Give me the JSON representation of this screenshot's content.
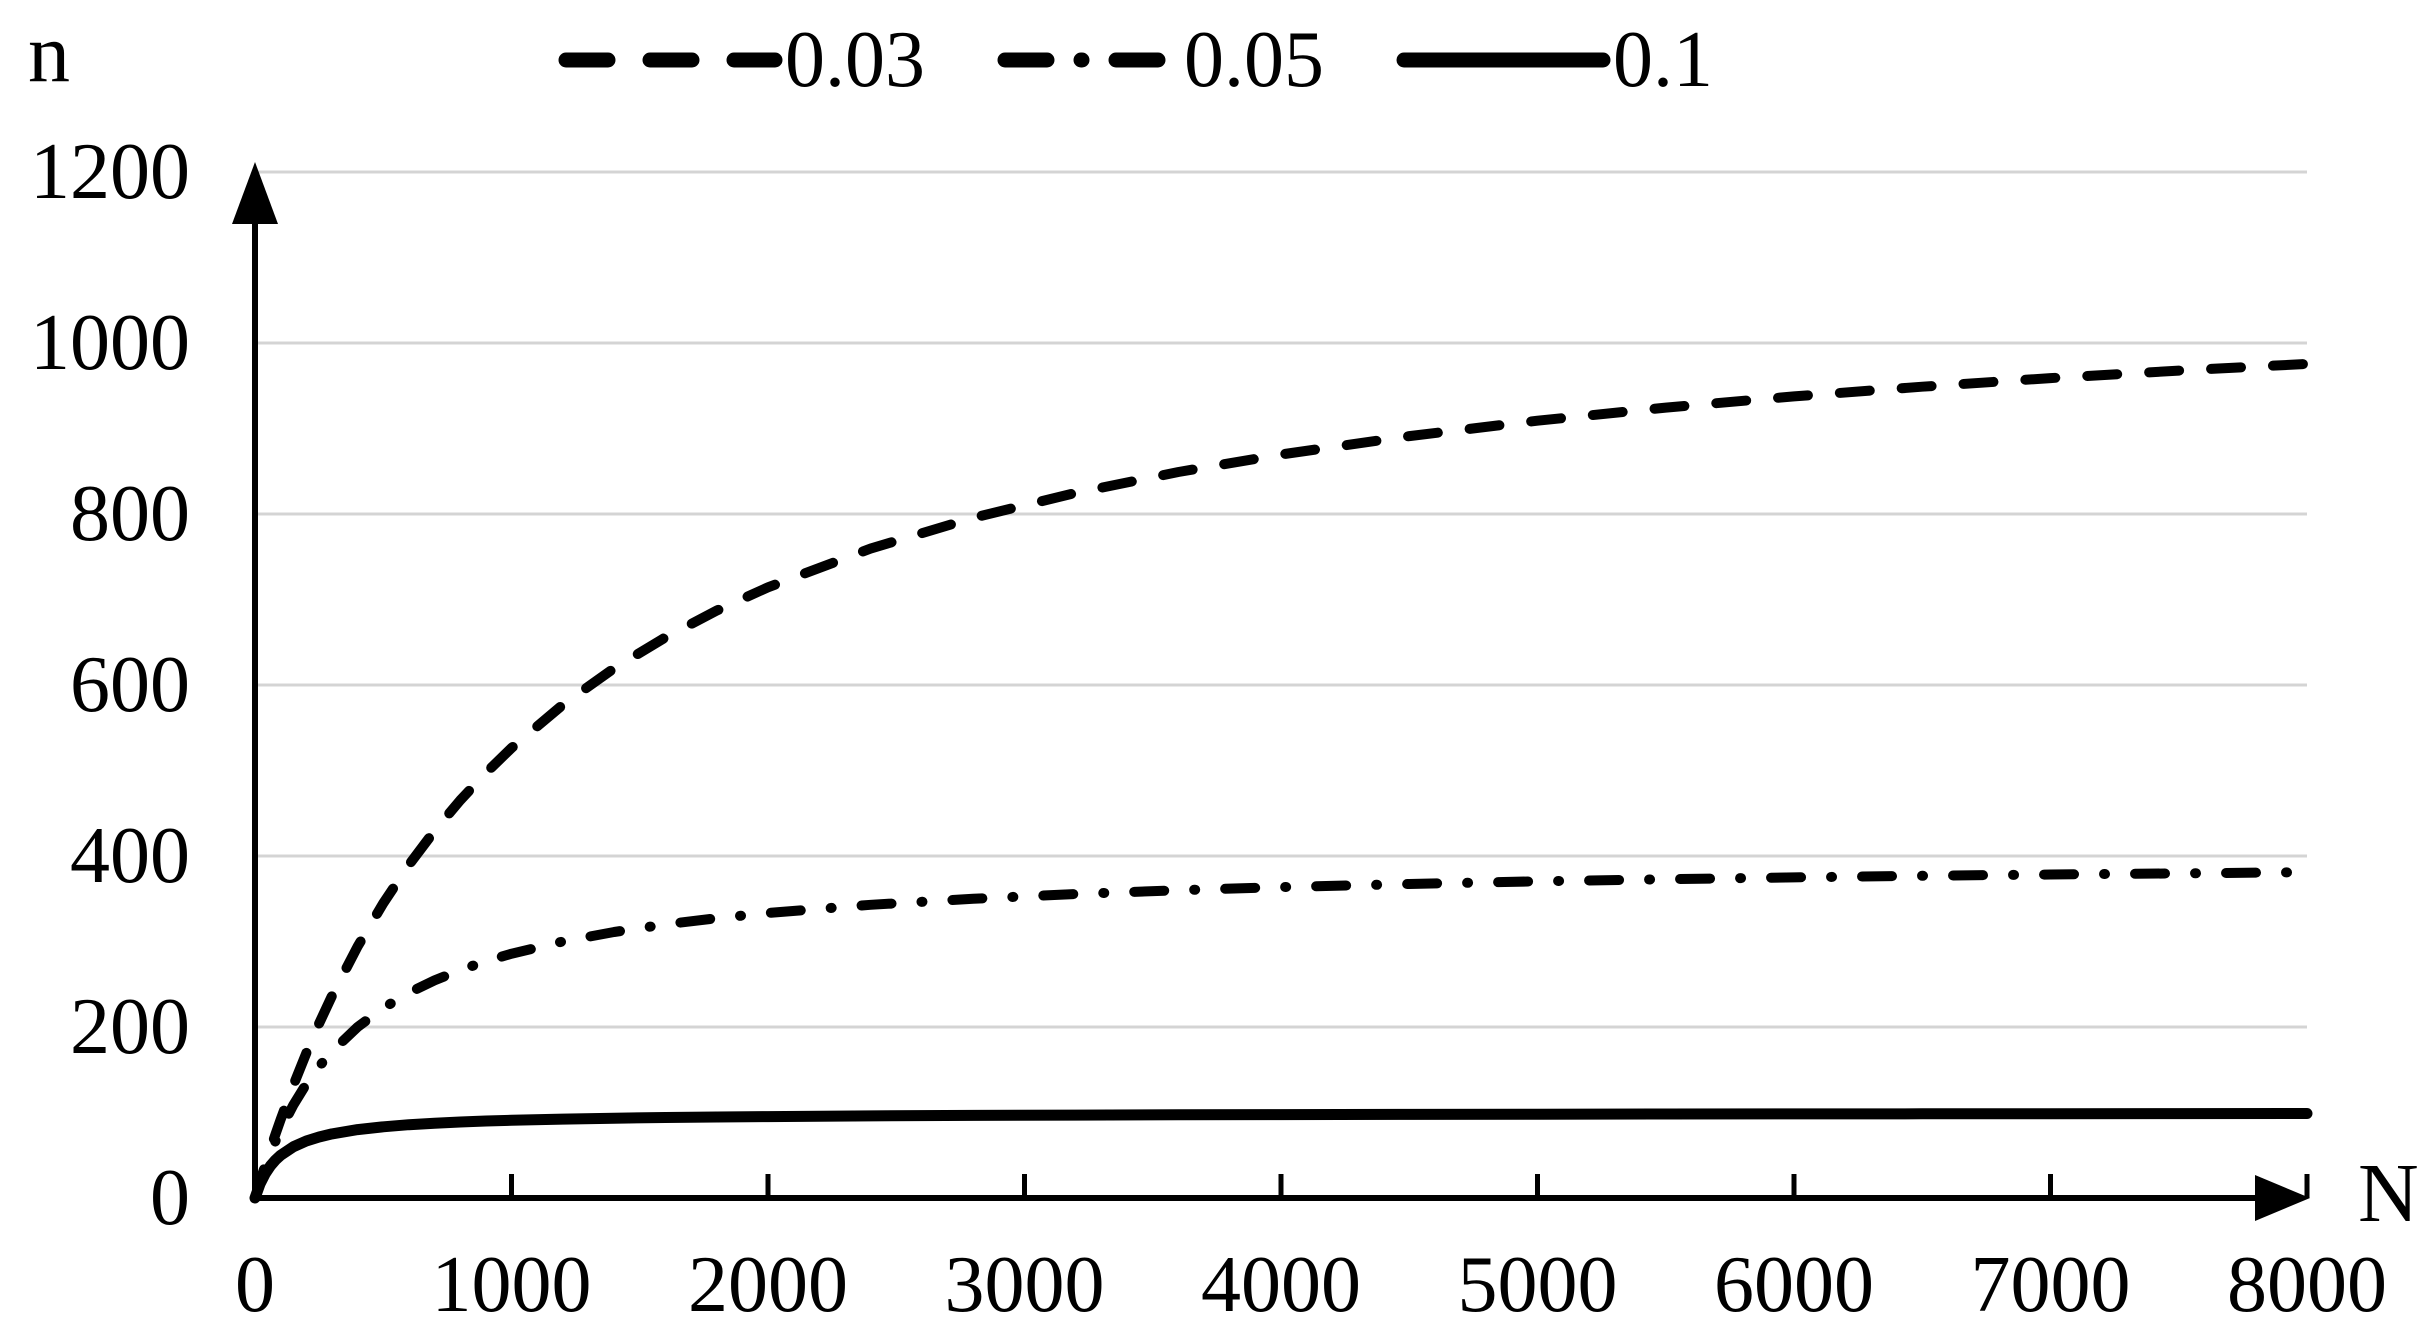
{
  "chart_data": {
    "type": "line",
    "title": "",
    "xlabel": "N",
    "ylabel": "n",
    "xlim": [
      0,
      8000
    ],
    "ylim": [
      0,
      1200
    ],
    "grid": "horizontal",
    "legend_position": "top",
    "x_tick_labels": [
      "0",
      "1000",
      "2000",
      "3000",
      "4000",
      "5000",
      "6000",
      "7000",
      "8000"
    ],
    "y_tick_labels": [
      "0",
      "200",
      "400",
      "600",
      "800",
      "1000",
      "1200"
    ],
    "colors": {
      "line": "#000000",
      "gridline": "#d4d4d4",
      "background": "#ffffff",
      "text": "#000000"
    },
    "x": [
      0,
      20,
      40,
      60,
      80,
      100,
      150,
      200,
      250,
      300,
      400,
      500,
      600,
      700,
      800,
      900,
      1000,
      1200,
      1400,
      1600,
      1800,
      2000,
      2400,
      2800,
      3200,
      3600,
      4000,
      4500,
      5000,
      5500,
      6000,
      6500,
      7000,
      7500,
      8000
    ],
    "series": [
      {
        "name": "0.03",
        "line_style": "dashed",
        "values": [
          0,
          19.6,
          38.6,
          56.9,
          74.6,
          91.7,
          132.2,
          169.5,
          204.1,
          236.2,
          294.1,
          344.8,
          389.6,
          429.4,
          465.1,
          497.2,
          526.3,
          576.9,
          619.5,
          655.7,
          687.0,
          714.3,
          759.5,
          795.5,
          824.7,
          849.1,
          869.6,
          891.1,
          909.1,
          924.4,
          937.5,
          948.9,
          958.9,
          967.7,
          975.6
        ]
      },
      {
        "name": "0.05",
        "line_style": "dash-dot",
        "values": [
          0,
          19.0,
          36.4,
          52.2,
          66.7,
          80.0,
          109.1,
          133.3,
          153.8,
          171.4,
          200.0,
          222.2,
          240.0,
          254.5,
          266.7,
          276.9,
          285.7,
          300.0,
          311.1,
          320.0,
          327.3,
          333.3,
          342.9,
          350.0,
          355.6,
          360.0,
          363.6,
          367.3,
          370.4,
          372.9,
          375.0,
          376.8,
          378.4,
          379.7,
          381.0
        ]
      },
      {
        "name": "0.1",
        "line_style": "solid",
        "values": [
          0,
          16.7,
          28.6,
          37.5,
          44.4,
          50.0,
          60.0,
          66.7,
          71.4,
          75.0,
          80.0,
          83.3,
          85.7,
          87.5,
          88.9,
          90.0,
          90.9,
          92.3,
          93.3,
          94.1,
          94.7,
          95.2,
          96.0,
          96.6,
          97.0,
          97.3,
          97.6,
          97.8,
          98.0,
          98.2,
          98.4,
          98.5,
          98.6,
          98.7,
          98.8
        ]
      }
    ]
  }
}
